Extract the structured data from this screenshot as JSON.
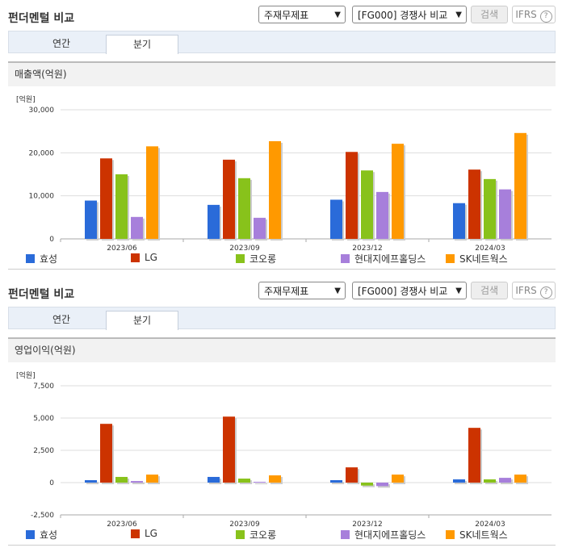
{
  "header": {
    "title": "펀더멘털 비교",
    "select1": "주재무제표",
    "select2": "[FG000] 경쟁사 비교",
    "search_label": "검색",
    "ifrs_label": "IFRS",
    "help_icon": "?"
  },
  "tabs": [
    "연간",
    "분기"
  ],
  "colors": [
    "#2a6bd9",
    "#cc3300",
    "#88c21b",
    "#a77fdb",
    "#ff9900"
  ],
  "legend": [
    "효성",
    "LG",
    "코오롱",
    "현대지에프홀딩스",
    "SK네트웍스"
  ],
  "chart_data": [
    {
      "type": "bar",
      "title": "매출액(억원)",
      "unit": "[억원]",
      "categories": [
        "2023/06",
        "2023/09",
        "2023/12",
        "2024/03"
      ],
      "ylim": [
        0,
        30000
      ],
      "yticks": [
        "30,000",
        "20,000",
        "10,000",
        "0"
      ],
      "ytick_values": [
        30000,
        20000,
        10000,
        0
      ],
      "series": [
        {
          "name": "효성",
          "values": [
            8900,
            7900,
            9100,
            8300
          ]
        },
        {
          "name": "LG",
          "values": [
            18700,
            18400,
            20200,
            16100
          ]
        },
        {
          "name": "코오롱",
          "values": [
            15000,
            14100,
            15900,
            13900
          ]
        },
        {
          "name": "현대지에프홀딩스",
          "values": [
            5100,
            4900,
            10900,
            11500
          ]
        },
        {
          "name": "SK네트웍스",
          "values": [
            21500,
            22700,
            22100,
            24600
          ]
        }
      ]
    },
    {
      "type": "bar",
      "title": "영업이익(억원)",
      "unit": "[억원]",
      "categories": [
        "2023/06",
        "2023/09",
        "2023/12",
        "2024/03"
      ],
      "ylim": [
        -2500,
        7500
      ],
      "yticks": [
        "7,500",
        "5,000",
        "2,500",
        "0",
        "-2,500"
      ],
      "ytick_values": [
        7500,
        5000,
        2500,
        0,
        -2500
      ],
      "series": [
        {
          "name": "효성",
          "values": [
            190,
            440,
            190,
            250
          ]
        },
        {
          "name": "LG",
          "values": [
            4550,
            5110,
            1180,
            4240
          ]
        },
        {
          "name": "코오롱",
          "values": [
            440,
            310,
            -230,
            250
          ]
        },
        {
          "name": "현대지에프홀딩스",
          "values": [
            120,
            60,
            -270,
            370
          ]
        },
        {
          "name": "SK네트웍스",
          "values": [
            620,
            560,
            620,
            620
          ]
        }
      ]
    }
  ]
}
